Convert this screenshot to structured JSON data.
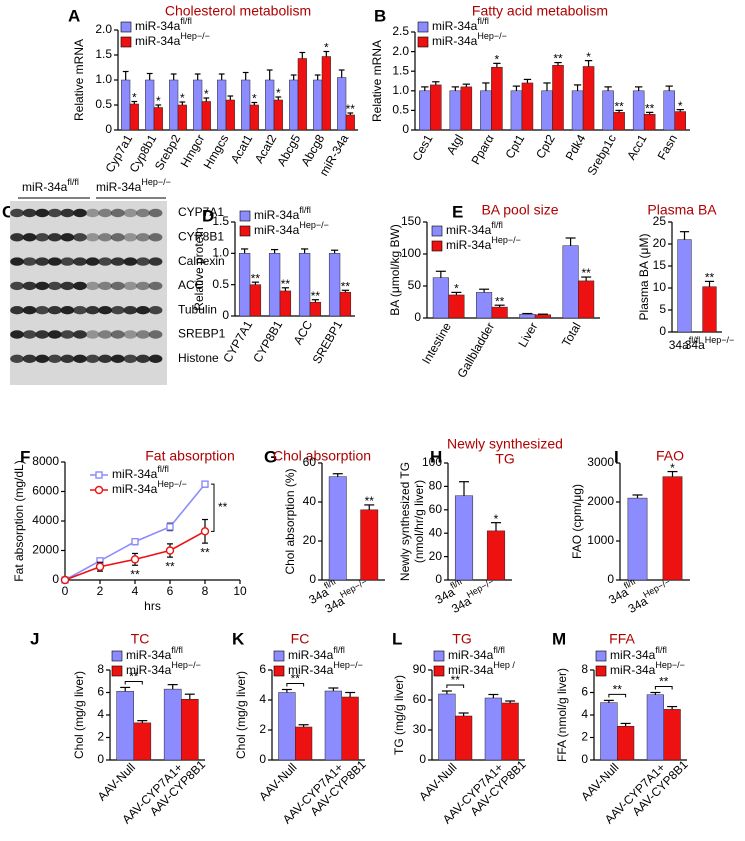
{
  "chart_data": [
    {
      "panel": "A",
      "type": "bar",
      "title": "Cholesterol metabolism",
      "y_label": "Relative mRNA",
      "categories": [
        "Cyp7a1",
        "Cyp8b1",
        "Srebp2",
        "Hmgcr",
        "Hmgcs",
        "Acat1",
        "Acat2",
        "Abcg5",
        "Abcg8",
        "miR-34a"
      ],
      "series": [
        {
          "name": "miR-34a",
          "name_sup": "fl/fl",
          "color": "#8c8cff",
          "values": [
            1,
            1,
            1,
            1,
            1,
            1,
            1,
            1,
            1,
            1.05
          ],
          "errors": [
            0.17,
            0.13,
            0.12,
            0.12,
            0.12,
            0.15,
            0.2,
            0.1,
            0.1,
            0.15
          ]
        },
        {
          "name": "miR-34a",
          "name_sup": "Hep−/−",
          "color": "#ee1111",
          "values": [
            0.52,
            0.45,
            0.5,
            0.57,
            0.6,
            0.5,
            0.6,
            1.43,
            1.47,
            0.3
          ],
          "errors": [
            0.05,
            0.05,
            0.06,
            0.07,
            0.08,
            0.05,
            0.06,
            0.12,
            0.1,
            0.04
          ],
          "sig": [
            "*",
            "*",
            "*",
            "*",
            null,
            "*",
            "*",
            null,
            "*",
            "**"
          ]
        }
      ],
      "ylim": [
        0,
        2
      ],
      "yticks": [
        0,
        0.5,
        {
          "value": 1,
          "label": "1.0"
        },
        1.5,
        {
          "value": 2,
          "label": "2.0"
        }
      ],
      "legend": "upper left"
    },
    {
      "panel": "B",
      "type": "bar",
      "title": "Fatty acid metabolism",
      "y_label": "Relative mRNA",
      "categories": [
        "Ces1",
        "Atgl",
        "Pparα",
        "Cpt1",
        "Cpt2",
        "Pdk4",
        "Srebp1c",
        "Acc1",
        "Fasn"
      ],
      "series": [
        {
          "name": "miR-34a",
          "name_sup": "fl/fl",
          "color": "#8c8cff",
          "values": [
            1,
            1,
            1,
            1,
            1,
            1,
            1,
            1,
            1
          ],
          "errors": [
            0.1,
            0.1,
            0.2,
            0.12,
            0.2,
            0.15,
            0.1,
            0.1,
            0.12
          ]
        },
        {
          "name": "miR-34a",
          "name_sup": "Hep−/−",
          "color": "#ee1111",
          "values": [
            1.15,
            1.1,
            1.6,
            1.2,
            1.65,
            1.62,
            0.45,
            0.4,
            0.47
          ],
          "errors": [
            0.08,
            0.07,
            0.1,
            0.09,
            0.07,
            0.15,
            0.05,
            0.05,
            0.05
          ],
          "sig": [
            null,
            null,
            "*",
            null,
            "**",
            "*",
            "**",
            "**",
            "*"
          ]
        }
      ],
      "ylim": [
        0,
        2.5
      ],
      "yticks": [
        0,
        0.5,
        {
          "value": 1,
          "label": "1.0"
        },
        1.5,
        {
          "value": 2,
          "label": "2.0"
        },
        2.5
      ],
      "legend": "upper left"
    },
    {
      "panel": "D",
      "type": "bar",
      "y_label": "Relative protein",
      "categories": [
        "CYP7A1",
        "CYP8B1",
        "ACC",
        "SREBP1"
      ],
      "series": [
        {
          "name": "miR-34a",
          "name_sup": "fl/fl",
          "color": "#8c8cff",
          "values": [
            1,
            1,
            1,
            1
          ],
          "errors": [
            0.07,
            0.06,
            0.07,
            0.05
          ]
        },
        {
          "name": "miR-34a",
          "name_sup": "Hep−/−",
          "color": "#ee1111",
          "values": [
            0.5,
            0.4,
            0.22,
            0.38
          ],
          "errors": [
            0.04,
            0.05,
            0.04,
            0.03
          ],
          "sig": [
            "**",
            "**",
            "**",
            "**"
          ]
        }
      ],
      "ylim": [
        0,
        1.5
      ],
      "yticks": [
        0,
        0.5,
        {
          "value": 1,
          "label": "1.0"
        },
        1.5
      ],
      "legend": "upper left"
    },
    {
      "panel": "E",
      "type": "bar",
      "title": "BA pool size",
      "y_label": "BA (μmol/kg BW)",
      "categories": [
        "Intestine",
        "Gallbladder",
        "Liver",
        "Total"
      ],
      "series": [
        {
          "name": "miR-34a",
          "name_sup": "fl/fl",
          "color": "#8c8cff",
          "values": [
            63,
            40,
            6,
            113
          ],
          "errors": [
            10,
            5,
            1,
            12
          ]
        },
        {
          "name": "miR-34a",
          "name_sup": "Hep−/−",
          "color": "#ee1111",
          "values": [
            36,
            17,
            5,
            58
          ],
          "errors": [
            4,
            3,
            1,
            6
          ],
          "sig": [
            "*",
            "**",
            null,
            "**"
          ]
        }
      ],
      "ylim": [
        0,
        150
      ],
      "yticks": [
        0,
        50,
        100,
        150
      ],
      "legend": "upper left"
    },
    {
      "type": "bar",
      "title": "Plasma BA",
      "y_label": "Plasma BA (μM)",
      "categories": [
        "34a",
        "34a"
      ],
      "category_sups": [
        "fl/fl",
        "Hep−/−"
      ],
      "values": [
        21,
        10.3
      ],
      "errors": [
        1.8,
        1.2
      ],
      "colors": [
        "#8c8cff",
        "#ee1111"
      ],
      "sig": [
        null,
        "**"
      ],
      "ylim": [
        0,
        25
      ],
      "yticks": [
        0,
        5,
        10,
        15,
        20,
        25
      ]
    },
    {
      "panel": "F",
      "type": "line",
      "title": "Fat absorption",
      "y_label": "Fat absorption (mg/dL)",
      "x_label": "hrs",
      "x": [
        0,
        2,
        4,
        6,
        8
      ],
      "series": [
        {
          "name": "miR-34a",
          "name_sup": "fl/fl",
          "color": "#8c8cff",
          "marker": "square",
          "values": [
            0,
            1300,
            2600,
            3600,
            6500
          ],
          "errors": [
            0,
            150,
            200,
            250,
            200
          ]
        },
        {
          "name": "miR-34a",
          "name_sup": "Hep−/−",
          "color": "#ee1111",
          "marker": "circle",
          "values": [
            0,
            900,
            1400,
            2000,
            3300
          ],
          "errors": [
            0,
            300,
            400,
            450,
            800
          ],
          "sig": [
            null,
            null,
            "**",
            "**",
            "**"
          ]
        }
      ],
      "bracket_label": "**",
      "xlim": [
        0,
        10
      ],
      "xticks": [
        0,
        2,
        4,
        6,
        8,
        10
      ],
      "ylim": [
        0,
        8000
      ],
      "yticks": [
        0,
        2000,
        4000,
        6000,
        8000
      ],
      "legend": "upper left"
    },
    {
      "panel": "G",
      "type": "bar",
      "title": "Chol absorption",
      "y_label": "Chol absorption (%)",
      "categories": [
        "34a",
        "34a"
      ],
      "category_sups": [
        "fl/fl",
        "Hep−/−"
      ],
      "values": [
        53,
        36
      ],
      "errors": [
        1.5,
        2.5
      ],
      "colors": [
        "#8c8cff",
        "#ee1111"
      ],
      "sig": [
        null,
        "**"
      ],
      "ylim": [
        0,
        60
      ],
      "yticks": [
        0,
        20,
        40,
        60
      ]
    },
    {
      "panel": "H",
      "type": "bar",
      "title": [
        "Newly synthesized",
        "TG"
      ],
      "y_label": [
        "Newly synthesized TG",
        "(nmol/hr/g liver)"
      ],
      "categories": [
        "34a",
        "34a"
      ],
      "category_sups": [
        "fl/fl",
        "Hep−/−"
      ],
      "values": [
        72,
        42
      ],
      "errors": [
        12,
        7
      ],
      "colors": [
        "#8c8cff",
        "#ee1111"
      ],
      "sig": [
        null,
        "*"
      ],
      "ylim": [
        0,
        100
      ],
      "yticks": [
        0,
        20,
        40,
        60,
        80,
        100
      ]
    },
    {
      "panel": "I",
      "type": "bar",
      "title": "FAO",
      "y_label": "FAO (cpm/μg)",
      "categories": [
        "34a",
        "34a"
      ],
      "category_sups": [
        "fl/fl",
        "Hep−/−"
      ],
      "values": [
        2100,
        2650
      ],
      "errors": [
        80,
        130
      ],
      "colors": [
        "#8c8cff",
        "#ee1111"
      ],
      "sig": [
        null,
        "*"
      ],
      "ylim": [
        0,
        3000
      ],
      "yticks": [
        0,
        1000,
        2000,
        3000
      ]
    },
    {
      "panel": "J",
      "type": "bar",
      "title": "TC",
      "y_label": "Chol (mg/g liver)",
      "categories": [
        [
          "AAV-Null"
        ],
        [
          "AAV-CYP7A1+",
          "AAV-CYP8B1"
        ]
      ],
      "series": [
        {
          "name": "miR-34a",
          "name_sup": "fl/fl",
          "color": "#8c8cff",
          "values": [
            6.1,
            6.3
          ],
          "errors": [
            0.35,
            0.4
          ]
        },
        {
          "name": "miR-34a",
          "name_sup": "Hep−/−",
          "color": "#ee1111",
          "values": [
            3.3,
            5.4
          ],
          "errors": [
            0.2,
            0.45
          ]
        }
      ],
      "bracket_labels": [
        "**",
        null
      ],
      "ylim": [
        0,
        8
      ],
      "yticks": [
        0,
        2,
        4,
        6,
        8
      ],
      "legend": "upper left"
    },
    {
      "panel": "K",
      "type": "bar",
      "title": "FC",
      "y_label": "Chol (mg/g liver)",
      "categories": [
        [
          "AAV-Null"
        ],
        [
          "AAV-CYP7A1+",
          "AAV-CYP8B1"
        ]
      ],
      "series": [
        {
          "name": "miR-34a",
          "name_sup": "fl/fl",
          "color": "#8c8cff",
          "values": [
            4.5,
            4.6
          ],
          "errors": [
            0.2,
            0.2
          ]
        },
        {
          "name": "miR-34a",
          "name_sup": "Hep−/−",
          "color": "#ee1111",
          "values": [
            2.2,
            4.2
          ],
          "errors": [
            0.15,
            0.3
          ]
        }
      ],
      "bracket_labels": [
        "**",
        null
      ],
      "ylim": [
        0,
        6
      ],
      "yticks": [
        0,
        2,
        4,
        6
      ],
      "legend": "upper left"
    },
    {
      "panel": "L",
      "type": "bar",
      "title": "TG",
      "y_label": "TG (mg/g liver)",
      "categories": [
        [
          "AAV-Null"
        ],
        [
          "AAV-CYP7A1+",
          "AAV-CYP8B1"
        ]
      ],
      "series": [
        {
          "name": "miR-34a",
          "name_sup": "fl/fl",
          "color": "#8c8cff",
          "values": [
            66,
            62
          ],
          "errors": [
            3,
            3.5
          ]
        },
        {
          "name": "miR-34a",
          "name_sup": "Hep /",
          "color": "#ee1111",
          "values": [
            44,
            57
          ],
          "errors": [
            3,
            2
          ]
        }
      ],
      "bracket_labels": [
        "**",
        null
      ],
      "ylim": [
        0,
        90
      ],
      "yticks": [
        0,
        30,
        60,
        90
      ],
      "legend": "upper left"
    },
    {
      "panel": "M",
      "type": "bar",
      "title": "FFA",
      "y_label": "FFA (nmol/g liver)",
      "categories": [
        [
          "AAV-Null"
        ],
        [
          "AAV-CYP7A1+",
          "AAV-CYP8B1"
        ]
      ],
      "series": [
        {
          "name": "miR-34a",
          "name_sup": "fl/fl",
          "color": "#8c8cff",
          "values": [
            5.1,
            5.8
          ],
          "errors": [
            0.2,
            0.2
          ]
        },
        {
          "name": "miR-34a",
          "name_sup": "Hep−/−",
          "color": "#ee1111",
          "values": [
            3.0,
            4.5
          ],
          "errors": [
            0.25,
            0.25
          ]
        }
      ],
      "bracket_labels": [
        "**",
        "**"
      ],
      "ylim": [
        0,
        8
      ],
      "yticks": [
        0,
        2,
        4,
        6,
        8
      ],
      "legend": "upper left"
    }
  ],
  "blot": {
    "panel": "C",
    "groups": [
      {
        "name": "miR-34a",
        "sup": "fl/fl"
      },
      {
        "name": "miR-34a",
        "sup": "Hep−/−"
      }
    ],
    "rows": [
      "CYP7A1",
      "CYP8B1",
      "Calnexin",
      "ACC",
      "Tubulin",
      "SREBP1",
      "Histone"
    ]
  }
}
